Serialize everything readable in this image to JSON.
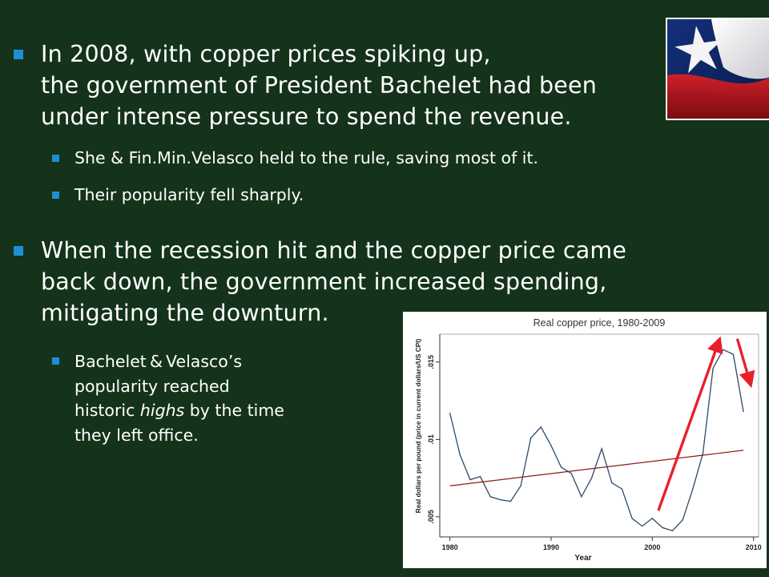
{
  "slide": {
    "bullet1": {
      "line1": "In 2008, with copper prices spiking up,",
      "line2": "the government of President Bachelet had been",
      "line3": "under intense pressure to spend the revenue."
    },
    "sub1": "She & Fin.Min.Velasco held to the rule, saving most of it.",
    "sub2": "Their popularity  fell sharply.",
    "bullet2": {
      "line1": "When the recession hit and the copper price came",
      "line2": "back down, the government increased spending,",
      "line3": "mitigating the downturn."
    },
    "sub3": {
      "line1": "Bachelet & Velasco’s",
      "line2": "popularity reached",
      "line3a": "historic ",
      "line3b": "highs",
      "line3c": " by the time",
      "line4": "they left office."
    }
  },
  "colors": {
    "background": "#14331a",
    "bullet": "#1e8fd6",
    "price_line": "#2c4a6b",
    "trend_line": "#8b1a1a",
    "arrow": "#e8202a"
  },
  "flag_image": {
    "depicts": "Flag of Chile"
  },
  "chart_data": {
    "type": "line",
    "title": "Real copper price, 1980-2009",
    "xlabel": "Year",
    "ylabel": "Real dollars per pound (price in current dollars/US CPI)",
    "xlim": [
      1979,
      2010.5
    ],
    "ylim": [
      0.0037,
      0.0168
    ],
    "x_ticks": [
      1980,
      1990,
      2000,
      2010
    ],
    "x_tick_labels": [
      "1980",
      "1990",
      "2000",
      "2010"
    ],
    "y_ticks": [
      0.005,
      0.01,
      0.015
    ],
    "y_tick_labels": [
      ".005",
      ".01",
      ".015"
    ],
    "grid": false,
    "series": [
      {
        "values": [
          [
            1980,
            0.0117
          ],
          [
            1981,
            0.009
          ],
          [
            1982,
            0.0074
          ],
          [
            1983,
            0.0076
          ],
          [
            1984,
            0.0063
          ],
          [
            1985,
            0.0061
          ],
          [
            1986,
            0.006
          ],
          [
            1987,
            0.007
          ],
          [
            1988,
            0.0101
          ],
          [
            1989,
            0.0108
          ],
          [
            1990,
            0.0096
          ],
          [
            1991,
            0.0082
          ],
          [
            1992,
            0.0078
          ],
          [
            1993,
            0.0063
          ],
          [
            1994,
            0.0075
          ],
          [
            1995,
            0.0094
          ],
          [
            1996,
            0.0072
          ],
          [
            1997,
            0.0068
          ],
          [
            1998,
            0.0049
          ],
          [
            1999,
            0.0044
          ],
          [
            2000,
            0.0049
          ],
          [
            2001,
            0.0043
          ],
          [
            2002,
            0.0041
          ],
          [
            2003,
            0.0048
          ],
          [
            2004,
            0.0068
          ],
          [
            2005,
            0.0091
          ],
          [
            2006,
            0.0146
          ],
          [
            2007,
            0.0158
          ],
          [
            2008,
            0.0155
          ],
          [
            2009,
            0.0118
          ]
        ]
      },
      {
        "values": [
          [
            1980,
            0.007
          ],
          [
            2009,
            0.0093
          ]
        ]
      }
    ],
    "annotations": [
      {
        "type": "arrow",
        "from": [
          2000.6,
          0.0054
        ],
        "to": [
          2006.5,
          0.0162
        ]
      },
      {
        "type": "arrow",
        "from": [
          2008.4,
          0.0165
        ],
        "to": [
          2009.6,
          0.0138
        ]
      }
    ]
  }
}
